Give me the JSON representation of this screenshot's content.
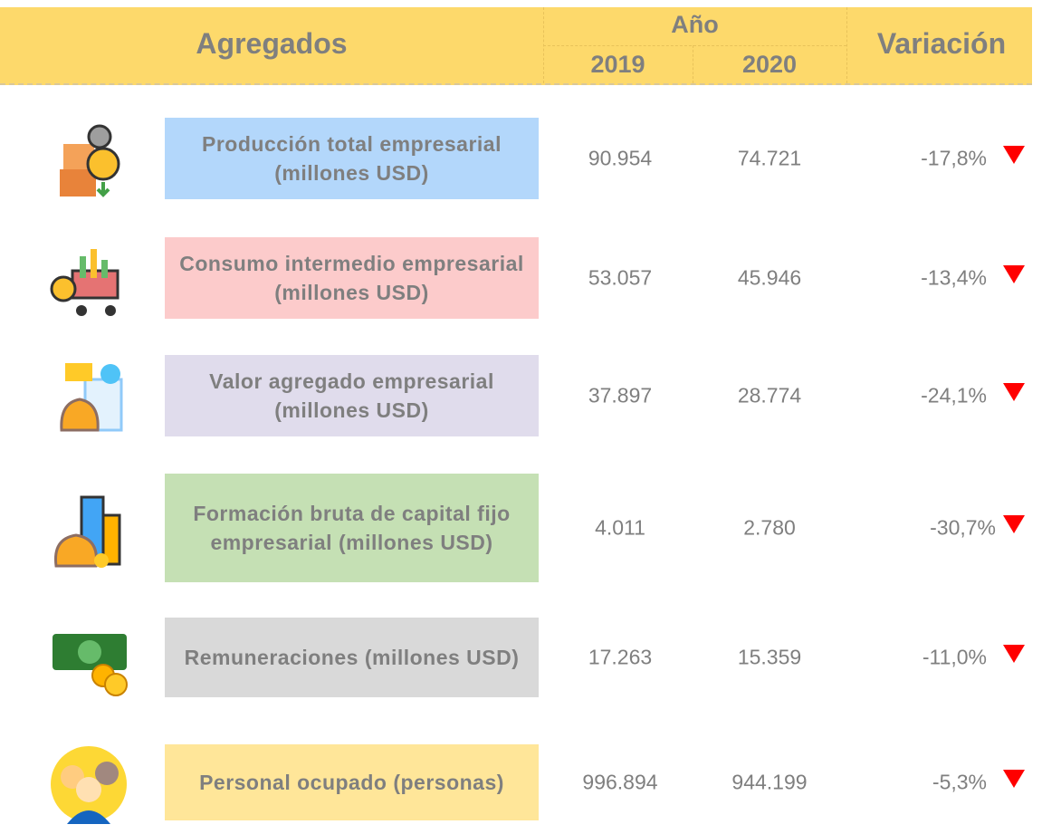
{
  "header": {
    "title": "Agregados",
    "year": "Año",
    "years": [
      "2019",
      "2020"
    ],
    "variation": "Variación"
  },
  "rows": [
    {
      "label": "Producción total empresarial (millones USD)",
      "values": [
        "90.954",
        "74.721"
      ],
      "variation": "-17,8%"
    },
    {
      "label": "Consumo intermedio empresarial (millones USD)",
      "values": [
        "53.057",
        "45.946"
      ],
      "variation": "-13,4%"
    },
    {
      "label": "Valor agregado empresarial (millones USD)",
      "values": [
        "37.897",
        "28.774"
      ],
      "variation": "-24,1%"
    },
    {
      "label": "Formación bruta de capital fijo empresarial (millones USD)",
      "values": [
        "4.011",
        "2.780"
      ],
      "variation": "-30,7%"
    },
    {
      "label": "Remuneraciones (millones USD)",
      "values": [
        "17.263",
        "15.359"
      ],
      "variation": "-11,0%"
    },
    {
      "label": "Personal ocupado (personas)",
      "values": [
        "996.894",
        "944.199"
      ],
      "variation": "-5,3%"
    }
  ]
}
